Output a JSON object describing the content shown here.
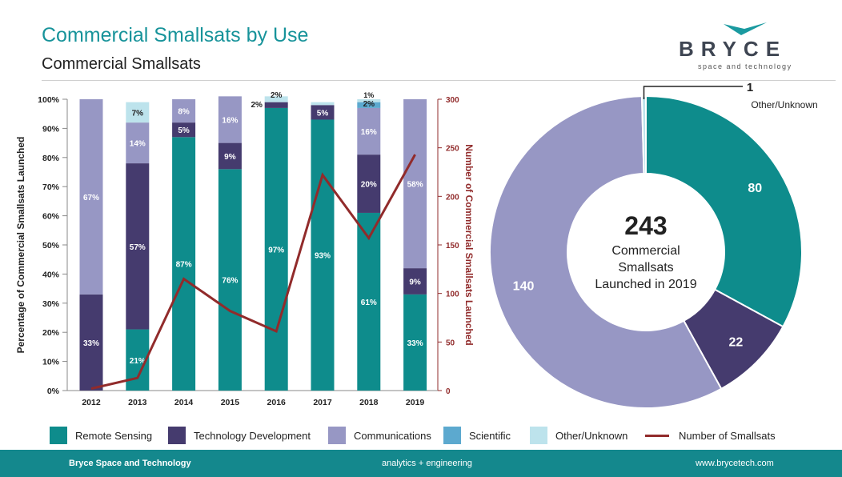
{
  "header": {
    "title": "Commercial Smallsats by Use",
    "subtitle": "Commercial Smallsats",
    "logo_word": "BRYCE",
    "logo_tagline": "space and technology"
  },
  "colors": {
    "remote_sensing": "#0e8c8c",
    "technology_development": "#453b6e",
    "communications": "#9797c4",
    "scientific": "#5ca9cf",
    "other_unknown": "#bde3ec",
    "number_of_smallsats": "#912b2b",
    "title": "#17939a"
  },
  "chart_data": [
    {
      "type": "bar",
      "stacked": true,
      "categories": [
        "2012",
        "2013",
        "2014",
        "2015",
        "2016",
        "2017",
        "2018",
        "2019"
      ],
      "series": [
        {
          "name": "Remote Sensing",
          "values": [
            0,
            21,
            87,
            76,
            97,
            93,
            61,
            33
          ],
          "labels": [
            "",
            "21%",
            "87%",
            "76%",
            "97%",
            "93%",
            "61%",
            "33%"
          ]
        },
        {
          "name": "Technology Development",
          "values": [
            33,
            57,
            5,
            9,
            2,
            5,
            20,
            9
          ],
          "labels": [
            "33%",
            "57%",
            "5%",
            "9%",
            "2%",
            "5%",
            "20%",
            "9%"
          ]
        },
        {
          "name": "Communications",
          "values": [
            67,
            14,
            8,
            16,
            0,
            0,
            16,
            58
          ],
          "labels": [
            "67%",
            "14%",
            "8%",
            "16%",
            "",
            "",
            "16%",
            "58%"
          ]
        },
        {
          "name": "Scientific",
          "values": [
            0,
            0,
            0,
            0,
            0,
            0,
            2,
            0
          ],
          "labels": [
            "",
            "",
            "",
            "",
            "",
            "",
            "2%",
            ""
          ]
        },
        {
          "name": "Other/Unknown",
          "values": [
            0,
            7,
            0,
            0,
            2,
            1,
            1,
            0
          ],
          "labels": [
            "",
            "7%",
            "",
            "",
            "2%",
            "",
            "1%",
            ""
          ]
        }
      ],
      "line_series": {
        "name": "Number of Smallsats",
        "values": [
          2,
          13,
          115,
          82,
          61,
          222,
          157,
          243
        ]
      },
      "ylabel": "Percentage of Commercial Smallsats Launched",
      "ylabel_right": "Number of Commercial Smallsats Launched",
      "ylim": [
        0,
        100
      ],
      "yticks": [
        "0%",
        "10%",
        "20%",
        "30%",
        "40%",
        "50%",
        "60%",
        "70%",
        "80%",
        "90%",
        "100%"
      ],
      "ylim_right": [
        0,
        300
      ],
      "yticks_right": [
        "0",
        "50",
        "100",
        "150",
        "200",
        "250",
        "300"
      ],
      "grid": false
    },
    {
      "type": "pie",
      "donut": true,
      "slices": [
        {
          "name": "Remote Sensing",
          "value": 80,
          "label": "80"
        },
        {
          "name": "Technology Development",
          "value": 22,
          "label": "22"
        },
        {
          "name": "Communications",
          "value": 140,
          "label": "140"
        },
        {
          "name": "Other/Unknown",
          "value": 1,
          "label": "1",
          "callout": "Other/Unknown"
        }
      ],
      "center_value": "243",
      "center_lines": [
        "Commercial",
        "Smallsats",
        "Launched in 2019"
      ]
    }
  ],
  "legend": [
    {
      "label": "Remote Sensing",
      "key": "remote_sensing",
      "kind": "swatch"
    },
    {
      "label": "Technology Development",
      "key": "technology_development",
      "kind": "swatch"
    },
    {
      "label": "Communications",
      "key": "communications",
      "kind": "swatch"
    },
    {
      "label": "Scientific",
      "key": "scientific",
      "kind": "swatch"
    },
    {
      "label": "Other/Unknown",
      "key": "other_unknown",
      "kind": "swatch"
    },
    {
      "label": "Number of Smallsats",
      "key": "number_of_smallsats",
      "kind": "line"
    }
  ],
  "footer": {
    "left": "Bryce Space and Technology",
    "center": "analytics + engineering",
    "right": "www.brycetech.com"
  }
}
